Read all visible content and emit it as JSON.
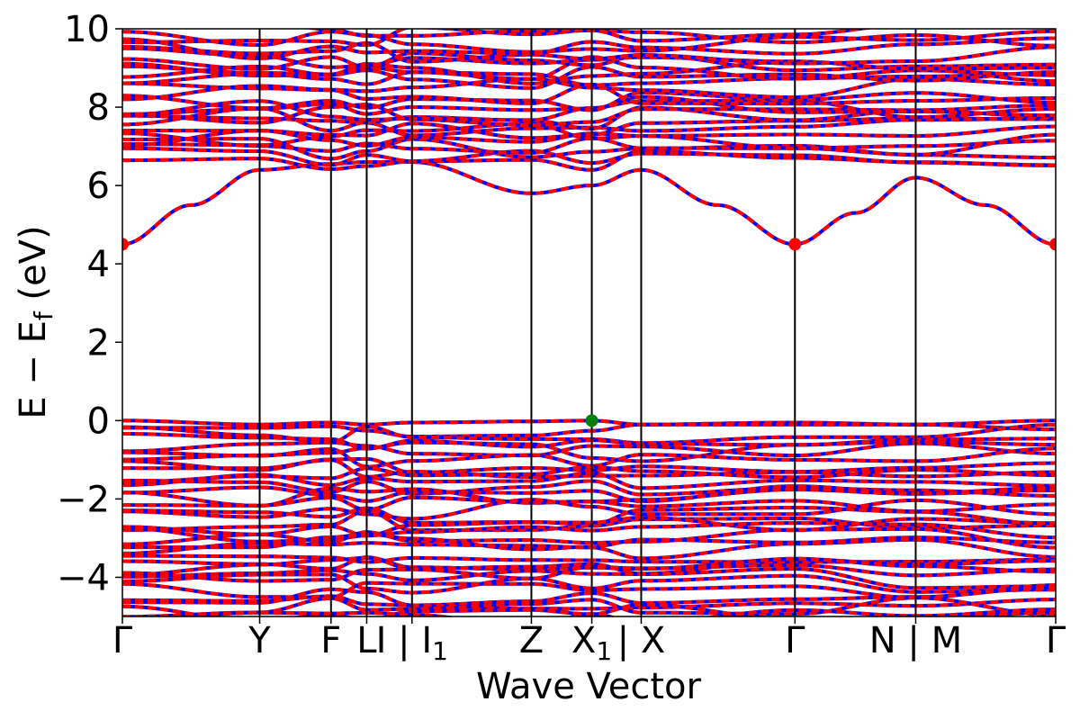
{
  "chart_data": {
    "type": "line",
    "xlabel": "Wave Vector",
    "ylabel": "E − E_f (eV)",
    "ylabel_main": "E − E",
    "ylabel_sub": "f",
    "ylabel_unit": " (eV)",
    "ylim": [
      -5,
      10
    ],
    "yticks": [
      -4,
      -2,
      0,
      2,
      4,
      6,
      8,
      10
    ],
    "ytick_labels": [
      "−4",
      "−2",
      "0",
      "2",
      "4",
      "6",
      "8",
      "10"
    ],
    "grid": false,
    "line_style": "dashed, alternating blue and red",
    "series_colors": {
      "a": "#0000ff",
      "b": "#ff0000"
    },
    "kpoints": [
      {
        "x": 0.0,
        "label": "Γ",
        "sub": ""
      },
      {
        "x": 1.0,
        "label": "Y",
        "sub": ""
      },
      {
        "x": 1.52,
        "label": "F",
        "sub": ""
      },
      {
        "x": 1.78,
        "label": "L",
        "sub": ""
      },
      {
        "x": 2.11,
        "label": "I | I",
        "sub": "1"
      },
      {
        "x": 2.98,
        "label": "Z",
        "sub": ""
      },
      {
        "x": 3.42,
        "label": "X",
        "sub": "1"
      },
      {
        "x": 3.78,
        "label": " | X",
        "sub": ""
      },
      {
        "x": 4.9,
        "label": "Γ",
        "sub": ""
      },
      {
        "x": 5.78,
        "label": "N | M",
        "sub": ""
      },
      {
        "x": 6.8,
        "label": "Γ",
        "sub": ""
      }
    ],
    "tick_text": [
      "Γ",
      "Y",
      "F",
      "L",
      "I | ",
      "I",
      "1",
      "Z",
      "X",
      "1",
      " | X",
      "Γ",
      "N | M",
      "Γ"
    ],
    "xlim": [
      0,
      6.8
    ],
    "conduction_band_minimum": {
      "E": 4.5,
      "x_points": [
        0.0,
        4.9,
        6.8
      ],
      "color": "#ff0000"
    },
    "valence_band_maximum": {
      "E": 0.0,
      "x": 3.42,
      "color": "#008000"
    },
    "highlight_bands": {
      "lowest_conduction": [
        {
          "x": 0.0,
          "E": 4.5
        },
        {
          "x": 0.5,
          "E": 5.5
        },
        {
          "x": 1.0,
          "E": 6.4
        },
        {
          "x": 1.52,
          "E": 6.55
        },
        {
          "x": 1.78,
          "E": 6.6
        },
        {
          "x": 2.11,
          "E": 6.6
        },
        {
          "x": 2.98,
          "E": 5.8
        },
        {
          "x": 3.42,
          "E": 6.0
        },
        {
          "x": 3.78,
          "E": 6.4
        },
        {
          "x": 4.34,
          "E": 5.5
        },
        {
          "x": 4.9,
          "E": 4.5
        },
        {
          "x": 5.34,
          "E": 5.3
        },
        {
          "x": 5.78,
          "E": 6.2
        },
        {
          "x": 6.29,
          "E": 5.5
        },
        {
          "x": 6.8,
          "E": 4.5
        }
      ],
      "top_valence": [
        {
          "x": 0.0,
          "E": 0.0
        },
        {
          "x": 1.0,
          "E": -0.1
        },
        {
          "x": 1.52,
          "E": -0.05
        },
        {
          "x": 1.78,
          "E": -0.1
        },
        {
          "x": 2.11,
          "E": -0.05
        },
        {
          "x": 2.98,
          "E": -0.02
        },
        {
          "x": 3.42,
          "E": 0.0
        },
        {
          "x": 3.78,
          "E": -0.1
        },
        {
          "x": 4.9,
          "E": -0.05
        },
        {
          "x": 5.78,
          "E": -0.1
        },
        {
          "x": 6.8,
          "E": 0.0
        }
      ]
    },
    "conduction_band_window": [
      6.6,
      10
    ],
    "valence_band_window": [
      -5,
      0
    ]
  }
}
